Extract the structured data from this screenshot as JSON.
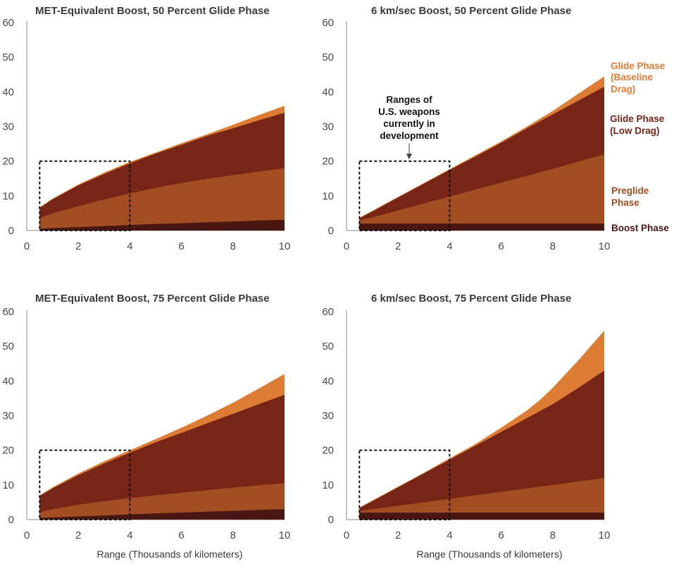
{
  "colors": {
    "boost_phase": "#4a1612",
    "preglide_phase": "#a24d22",
    "glide_low_drag": "#772516",
    "glide_baseline_drag": "#dd7d35",
    "axis": "#8a8a8a",
    "box": "#111111"
  },
  "legend": [
    {
      "key": "glide_baseline_drag",
      "lines": [
        "Glide Phase",
        "(Baseline",
        "Drag)"
      ]
    },
    {
      "key": "glide_low_drag",
      "lines": [
        "Glide Phase",
        "(Low Drag)"
      ]
    },
    {
      "key": "preglide_phase",
      "lines": [
        "Preglide",
        "Phase"
      ]
    },
    {
      "key": "boost_phase",
      "lines": [
        "Boost Phase"
      ]
    }
  ],
  "annotation": {
    "lines": [
      "Ranges of",
      "U.S. weapons",
      "currently in",
      "development"
    ]
  },
  "xlabel": "Range (Thousands of kilometers)",
  "chart_data": [
    {
      "type": "area",
      "title": "MET-Equivalent Boost, 50 Percent Glide Phase",
      "xlim": [
        0,
        10
      ],
      "ylim": [
        0,
        60
      ],
      "xticks": [
        0,
        2,
        4,
        6,
        8,
        10
      ],
      "yticks": [
        0,
        10,
        20,
        30,
        40,
        50,
        60
      ],
      "xlabel": "",
      "x": [
        0.5,
        1,
        2,
        3,
        4,
        5,
        6,
        7,
        8,
        9,
        10
      ],
      "cumulative": true,
      "series": [
        {
          "name": "Boost Phase",
          "key": "boost_phase",
          "values": [
            0.5,
            0.7,
            1.0,
            1.3,
            1.6,
            1.9,
            2.1,
            2.4,
            2.6,
            2.9,
            3.1
          ]
        },
        {
          "name": "Preglide Phase",
          "key": "preglide_phase",
          "values": [
            3.5,
            5.0,
            7.0,
            9.0,
            10.7,
            12.3,
            13.7,
            14.9,
            16.0,
            17.0,
            18.0
          ]
        },
        {
          "name": "Glide Phase (Low Drag)",
          "key": "glide_low_drag",
          "values": [
            6.5,
            9.0,
            13.0,
            16.3,
            19.4,
            22.2,
            24.7,
            27.3,
            29.5,
            31.8,
            34.0
          ]
        },
        {
          "name": "Glide Phase (Baseline Drag)",
          "key": "glide_baseline_drag",
          "values": [
            6.7,
            9.2,
            13.3,
            16.7,
            19.8,
            22.5,
            25.2,
            27.8,
            30.5,
            33.3,
            36.0
          ]
        }
      ],
      "box": {
        "x": [
          0.5,
          4
        ],
        "y": [
          0,
          20
        ]
      }
    },
    {
      "type": "area",
      "title": "6 km/sec Boost, 50 Percent Glide Phase",
      "xlim": [
        0,
        10
      ],
      "ylim": [
        0,
        60
      ],
      "xticks": [
        0,
        2,
        4,
        6,
        8,
        10
      ],
      "yticks": [
        0,
        10,
        20,
        30,
        40,
        50,
        60
      ],
      "xlabel": "",
      "x": [
        0.5,
        1,
        2,
        3,
        4,
        5,
        6,
        7,
        8,
        9,
        10
      ],
      "cumulative": true,
      "series": [
        {
          "name": "Boost Phase",
          "key": "boost_phase",
          "values": [
            2.0,
            2.0,
            2.0,
            2.0,
            2.0,
            2.0,
            2.0,
            2.0,
            2.0,
            2.0,
            2.0
          ]
        },
        {
          "name": "Preglide Phase",
          "key": "preglide_phase",
          "values": [
            3.0,
            3.8,
            5.8,
            7.8,
            9.8,
            11.8,
            13.8,
            15.8,
            17.8,
            19.9,
            22.0
          ]
        },
        {
          "name": "Glide Phase (Low Drag)",
          "key": "glide_low_drag",
          "values": [
            3.5,
            5.5,
            9.5,
            13.5,
            17.5,
            21.3,
            25.3,
            29.5,
            33.5,
            37.5,
            41.5
          ]
        },
        {
          "name": "Glide Phase (Baseline Drag)",
          "key": "glide_baseline_drag",
          "values": [
            3.7,
            5.7,
            9.7,
            13.7,
            17.7,
            21.7,
            25.7,
            30.0,
            34.5,
            39.5,
            44.5
          ]
        }
      ],
      "box": {
        "x": [
          0.5,
          4
        ],
        "y": [
          0,
          20
        ]
      }
    },
    {
      "type": "area",
      "title": "MET-Equivalent Boost, 75 Percent Glide Phase",
      "xlim": [
        0,
        10
      ],
      "ylim": [
        0,
        60
      ],
      "xticks": [
        0,
        2,
        4,
        6,
        8,
        10
      ],
      "yticks": [
        0,
        10,
        20,
        30,
        40,
        50,
        60
      ],
      "xlabel": "Range (Thousands of kilometers)",
      "x": [
        0.5,
        1,
        2,
        3,
        4,
        5,
        6,
        7,
        8,
        9,
        10
      ],
      "cumulative": true,
      "series": [
        {
          "name": "Boost Phase",
          "key": "boost_phase",
          "values": [
            0.5,
            0.6,
            0.9,
            1.2,
            1.5,
            1.8,
            2.0,
            2.3,
            2.5,
            2.8,
            3.0
          ]
        },
        {
          "name": "Preglide Phase",
          "key": "preglide_phase",
          "values": [
            2.2,
            3.0,
            4.3,
            5.3,
            6.2,
            7.0,
            7.7,
            8.5,
            9.2,
            9.9,
            10.5
          ]
        },
        {
          "name": "Glide Phase (Low Drag)",
          "key": "glide_low_drag",
          "values": [
            6.8,
            9.0,
            12.8,
            16.2,
            19.3,
            22.3,
            25.0,
            27.8,
            30.5,
            33.3,
            36.0
          ]
        },
        {
          "name": "Glide Phase (Baseline Drag)",
          "key": "glide_baseline_drag",
          "values": [
            7.0,
            9.3,
            13.3,
            16.8,
            20.0,
            23.2,
            26.5,
            30.0,
            33.7,
            37.8,
            42.0
          ]
        }
      ],
      "box": {
        "x": [
          0.5,
          4
        ],
        "y": [
          0,
          20
        ]
      }
    },
    {
      "type": "area",
      "title": "6 km/sec Boost, 75 Percent Glide Phase",
      "xlim": [
        0,
        10
      ],
      "ylim": [
        0,
        60
      ],
      "xticks": [
        0,
        2,
        4,
        6,
        8,
        10
      ],
      "yticks": [
        0,
        10,
        20,
        30,
        40,
        50,
        60
      ],
      "xlabel": "Range (Thousands of kilometers)",
      "x": [
        0.5,
        1,
        2,
        3,
        4,
        5,
        6,
        7,
        7.5,
        8,
        9,
        10
      ],
      "cumulative": true,
      "series": [
        {
          "name": "Boost Phase",
          "key": "boost_phase",
          "values": [
            2.0,
            2.0,
            2.0,
            2.0,
            2.0,
            2.0,
            2.0,
            2.0,
            2.0,
            2.0,
            2.0,
            2.0
          ]
        },
        {
          "name": "Preglide Phase",
          "key": "preglide_phase",
          "values": [
            2.5,
            3.0,
            4.0,
            5.0,
            6.0,
            7.0,
            8.0,
            9.0,
            9.5,
            10.0,
            11.0,
            12.0
          ]
        },
        {
          "name": "Glide Phase (Low Drag)",
          "key": "glide_low_drag",
          "values": [
            3.3,
            5.3,
            9.3,
            13.3,
            17.3,
            21.3,
            25.3,
            29.3,
            31.3,
            33.3,
            38.0,
            43.0
          ]
        },
        {
          "name": "Glide Phase (Baseline Drag)",
          "key": "glide_baseline_drag",
          "values": [
            3.5,
            5.5,
            9.5,
            13.5,
            17.7,
            21.8,
            26.5,
            31.5,
            34.5,
            38.0,
            46.0,
            54.5
          ]
        }
      ],
      "box": {
        "x": [
          0.5,
          4
        ],
        "y": [
          0,
          20
        ]
      }
    }
  ]
}
